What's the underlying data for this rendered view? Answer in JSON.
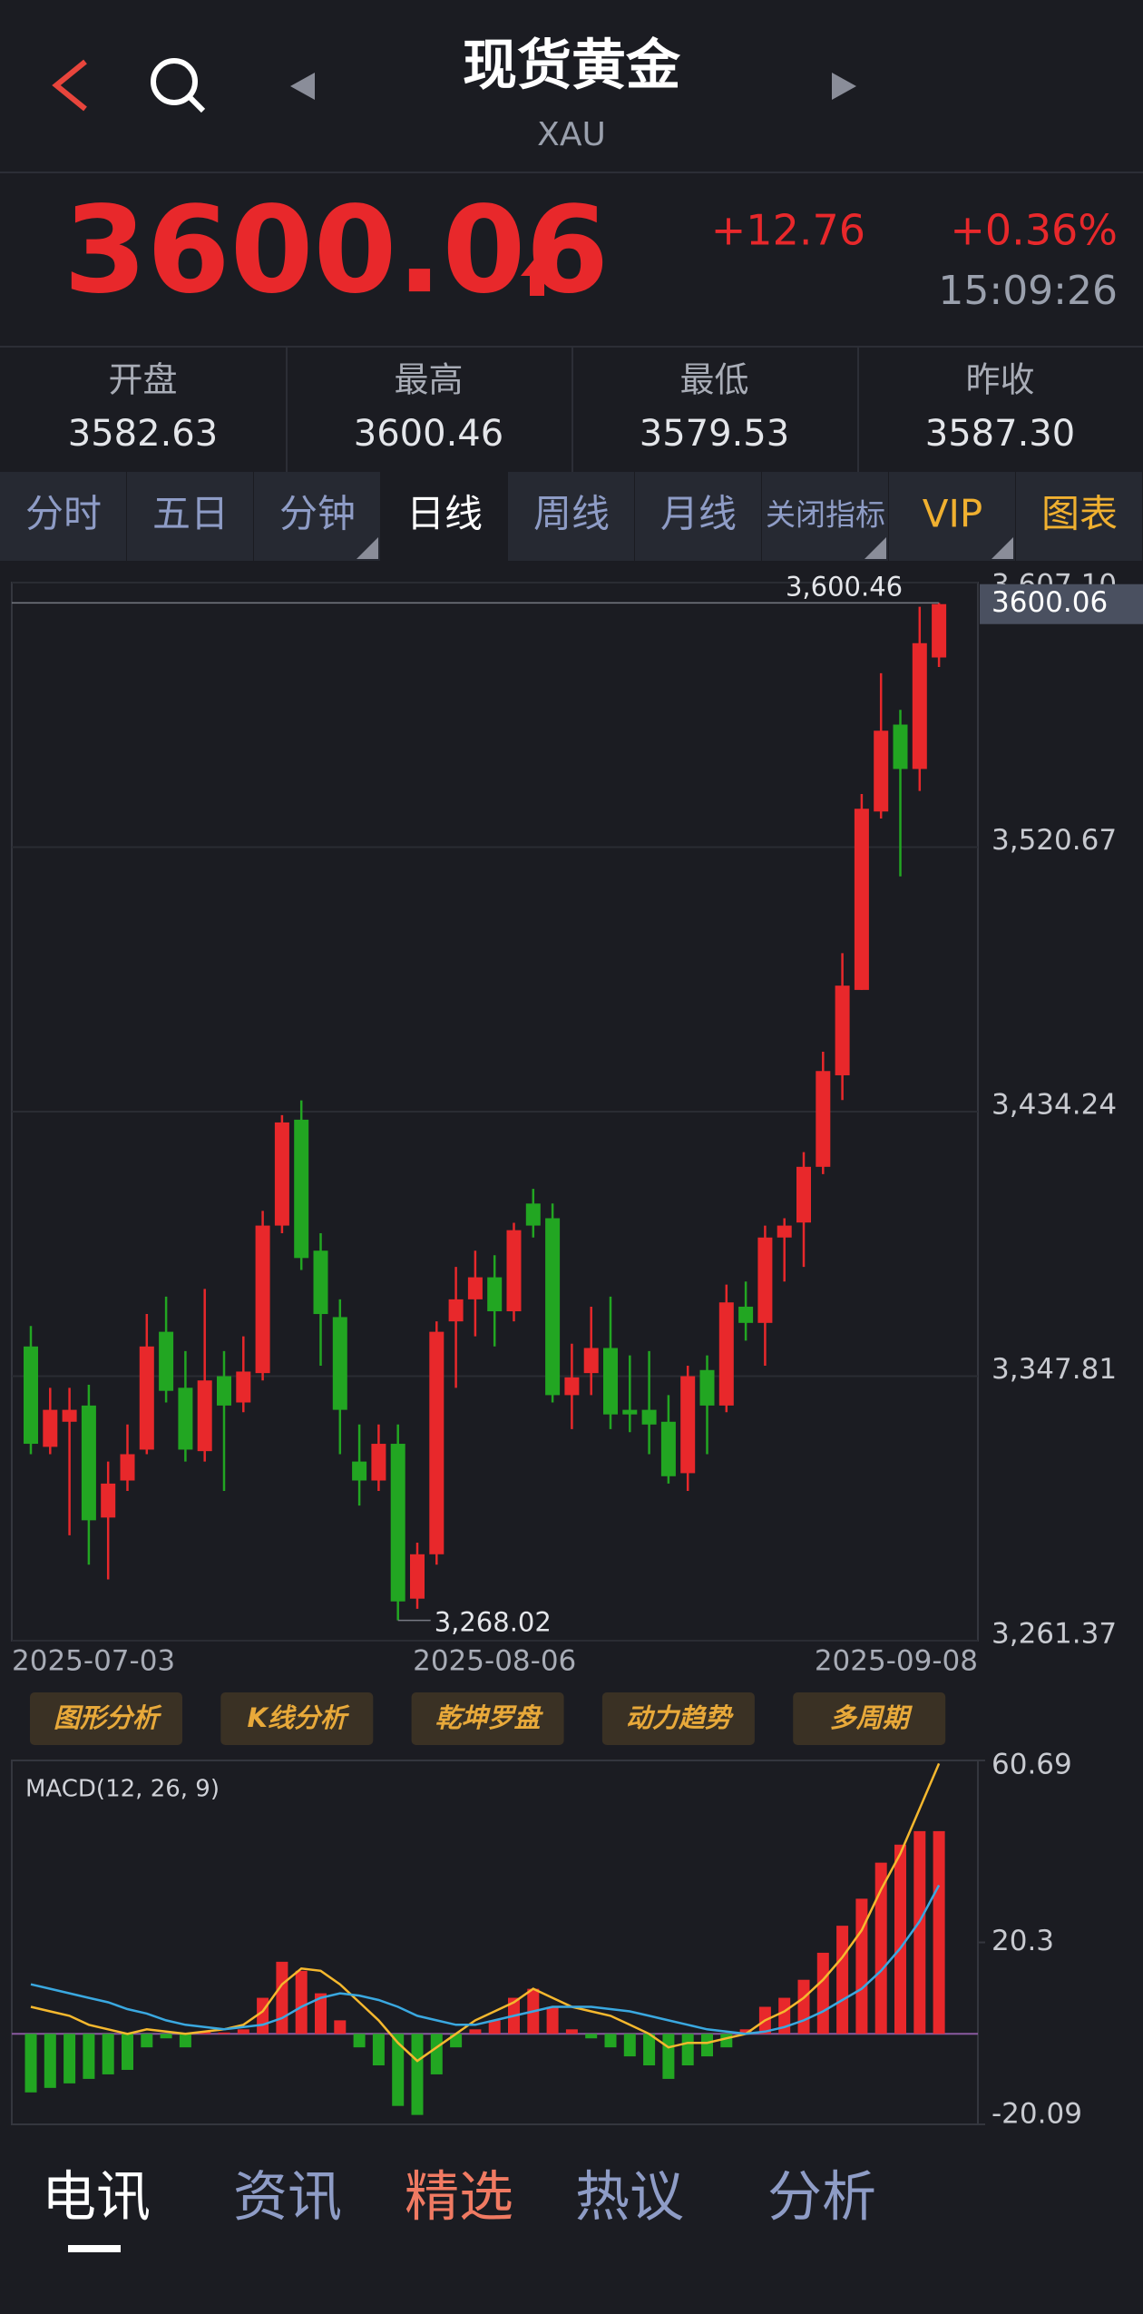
{
  "header": {
    "title": "现货黄金",
    "symbol": "XAU"
  },
  "quote": {
    "price": "3600.06",
    "change": "+12.76",
    "change_pct": "+0.36%",
    "time": "15:09:26"
  },
  "stats": [
    {
      "label": "开盘",
      "value": "3582.63"
    },
    {
      "label": "最高",
      "value": "3600.46"
    },
    {
      "label": "最低",
      "value": "3579.53"
    },
    {
      "label": "昨收",
      "value": "3587.30"
    }
  ],
  "period_tabs": [
    "分时",
    "五日",
    "分钟",
    "日线",
    "周线",
    "月线",
    "关闭指标",
    "VIP",
    "图表"
  ],
  "tools": [
    "图形分析",
    "K线分析",
    "乾坤罗盘",
    "动力趋势",
    "多周期"
  ],
  "news_tabs": [
    "电讯",
    "资讯",
    "精选",
    "热议",
    "分析"
  ],
  "chart_data": [
    {
      "type": "candlestick",
      "up_color": "#e8282b",
      "down_color": "#22a622",
      "grid": true,
      "categories": [
        "2025-07-03",
        null,
        null,
        null,
        null,
        null,
        null,
        null,
        null,
        null,
        null,
        null,
        null,
        null,
        null,
        null,
        null,
        null,
        null,
        null,
        null,
        null,
        null,
        null,
        "2025-08-06",
        null,
        null,
        null,
        null,
        null,
        null,
        null,
        null,
        null,
        null,
        null,
        null,
        null,
        null,
        null,
        null,
        null,
        null,
        null,
        null,
        null,
        null,
        "2025-09-08"
      ],
      "open": [
        3357.5,
        3324.7,
        3332.9,
        3338.2,
        3301.6,
        3313.7,
        3323.8,
        3362.3,
        3344.0,
        3323.3,
        3347.8,
        3339.2,
        3348.8,
        3397.0,
        3431.6,
        3388.8,
        3367.1,
        3319.9,
        3313.7,
        3325.7,
        3275.1,
        3289.6,
        3365.7,
        3372.9,
        3380.1,
        3369.0,
        3404.2,
        3399.4,
        3341.6,
        3348.8,
        3357.0,
        3336.8,
        3336.8,
        3332.9,
        3316.1,
        3349.8,
        3338.2,
        3370.5,
        3365.2,
        3393.1,
        3398.0,
        3416.2,
        3446.1,
        3474.0,
        3532.3,
        3560.7,
        3546.2,
        3582.63
      ],
      "high": [
        3364.2,
        3344.0,
        3344.0,
        3345.0,
        3319.9,
        3332.0,
        3368.1,
        3373.8,
        3356.0,
        3376.3,
        3356.0,
        3360.8,
        3401.8,
        3433.1,
        3437.9,
        3394.5,
        3372.9,
        3332.0,
        3332.0,
        3332.0,
        3293.4,
        3365.7,
        3383.5,
        3388.8,
        3387.3,
        3397.9,
        3409.0,
        3404.2,
        3358.4,
        3370.5,
        3373.8,
        3354.6,
        3356.0,
        3341.6,
        3351.2,
        3354.6,
        3377.7,
        3378.7,
        3397.0,
        3399.4,
        3421.0,
        3453.8,
        3486.0,
        3538.0,
        3577.5,
        3565.5,
        3599.2,
        3600.46
      ],
      "low": [
        3322.3,
        3322.3,
        3295.8,
        3286.2,
        3281.4,
        3310.3,
        3322.3,
        3339.2,
        3319.9,
        3319.9,
        3310.3,
        3336.0,
        3346.4,
        3394.5,
        3382.5,
        3351.2,
        3322.3,
        3305.5,
        3310.3,
        3268.02,
        3271.8,
        3286.2,
        3344.0,
        3360.8,
        3357.5,
        3365.7,
        3393.1,
        3339.2,
        3330.5,
        3341.6,
        3330.5,
        3329.5,
        3322.3,
        3312.7,
        3310.3,
        3322.3,
        3336.0,
        3359.4,
        3351.2,
        3378.7,
        3383.5,
        3413.8,
        3438.0,
        3474.0,
        3530.0,
        3511.1,
        3539.0,
        3579.53
      ],
      "close": [
        3325.7,
        3336.8,
        3336.8,
        3300.7,
        3312.7,
        3322.3,
        3357.5,
        3343.0,
        3323.8,
        3346.4,
        3338.2,
        3349.3,
        3397.0,
        3430.7,
        3386.4,
        3368.1,
        3336.8,
        3313.7,
        3325.7,
        3274.2,
        3289.6,
        3362.3,
        3372.9,
        3380.1,
        3369.0,
        3395.5,
        3397.0,
        3341.6,
        3347.4,
        3357.0,
        3335.3,
        3335.3,
        3332.0,
        3315.1,
        3347.8,
        3338.2,
        3371.9,
        3365.2,
        3393.1,
        3397.0,
        3416.2,
        3447.5,
        3475.4,
        3533.2,
        3558.7,
        3546.2,
        3587.3,
        3600.06
      ],
      "ylim": [
        3261.37,
        3607.1
      ],
      "yticks": [
        {
          "value": 3261.37,
          "label": "3,261.37"
        },
        {
          "value": 3347.81,
          "label": "3,347.81"
        },
        {
          "value": 3434.24,
          "label": "3,434.24"
        },
        {
          "value": 3520.67,
          "label": "3,520.67"
        },
        {
          "value": 3607.1,
          "label": "3,607.10"
        }
      ],
      "annotations": [
        {
          "value": 3600.46,
          "label": "3,600.46"
        },
        {
          "value": 3268.02,
          "label": "3,268.02"
        }
      ],
      "current_price": {
        "value": 3600.06,
        "label": "3600.06"
      }
    },
    {
      "type": "macd",
      "title": "MACD(12, 26, 9)",
      "up_color": "#e8282b",
      "down_color": "#22a622",
      "zero_color": "#8a5aa0",
      "histogram": [
        -13,
        -12,
        -11,
        -10,
        -9,
        -8,
        -3,
        -1,
        -3,
        0.5,
        0.3,
        1,
        8,
        16,
        14,
        9,
        3,
        -3,
        -7,
        -16,
        -18,
        -9,
        -3,
        1,
        3,
        8,
        10,
        6,
        1,
        -1,
        -3,
        -5,
        -7,
        -10,
        -7,
        -5,
        -3,
        1,
        6,
        8,
        12,
        18,
        24,
        30,
        38,
        42,
        45,
        45
      ],
      "dif": {
        "color": "#f5b82e",
        "values": [
          6,
          5,
          4,
          2,
          1,
          0,
          1,
          0.5,
          0,
          0.5,
          1,
          2,
          5,
          11,
          14.5,
          14,
          11,
          7,
          3,
          -2,
          -6,
          -3,
          0,
          3,
          5,
          7,
          10,
          8,
          6,
          5,
          4,
          2,
          0,
          -3,
          -2,
          -2,
          -1,
          0,
          3,
          5,
          8,
          12,
          17,
          23,
          32,
          40,
          50,
          60
        ]
      },
      "dea": {
        "color": "#3aa8e0",
        "values": [
          11,
          10,
          9,
          8,
          7,
          5.5,
          4.5,
          3,
          2,
          1.5,
          1,
          1.5,
          2,
          3.5,
          6,
          8,
          9,
          8.5,
          7.5,
          6,
          4,
          3,
          2,
          2,
          3,
          4,
          5,
          6,
          6,
          6,
          5.5,
          5,
          4,
          3,
          2,
          1,
          0.5,
          0,
          0.5,
          1.5,
          3,
          5,
          7.5,
          10,
          14,
          19,
          25,
          33
        ]
      },
      "ylim": [
        -20.09,
        60.69
      ],
      "yticks": [
        -20.09,
        20.3,
        60.69
      ]
    }
  ]
}
